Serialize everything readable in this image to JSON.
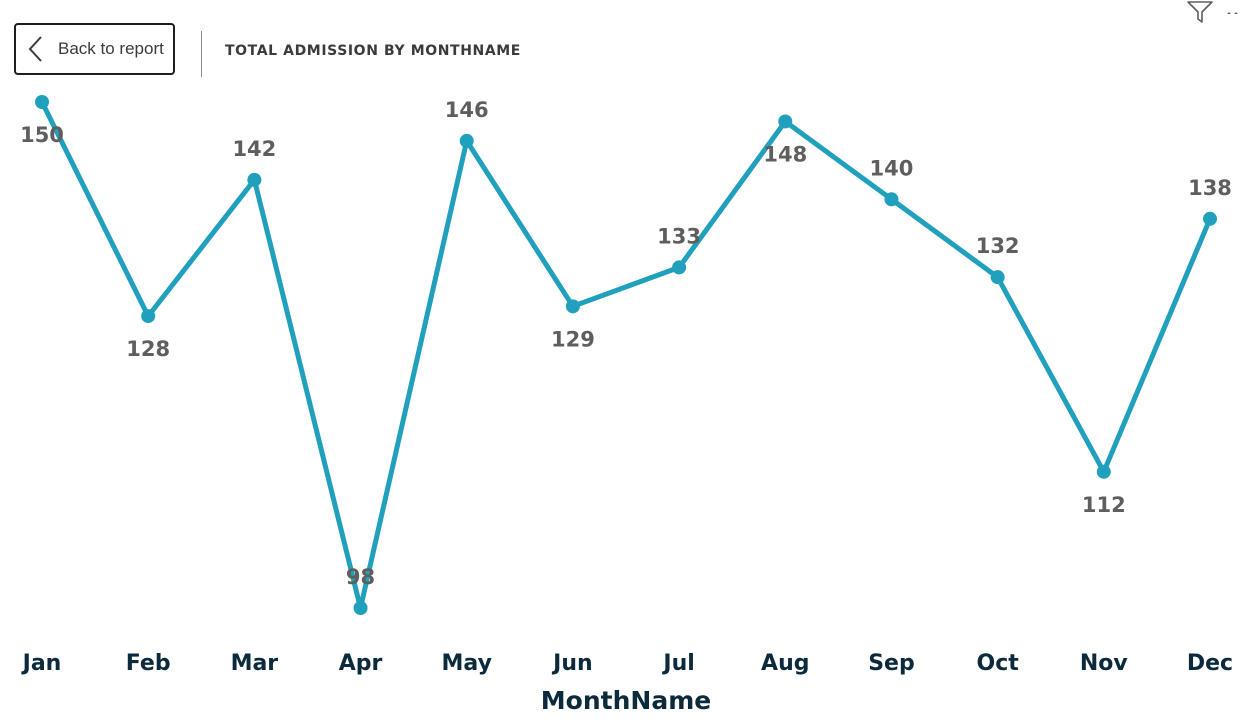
{
  "toolbar": {
    "back_label": "Back to report",
    "visual_title": "TOTAL ADMISSION BY MONTHNAME",
    "filter_icon": "filter-icon",
    "more_icon": "more-options-icon"
  },
  "colors": {
    "line": "#21a0bd",
    "data_label": "#605e5c",
    "axis_text": "#0b2a3c"
  },
  "chart_data": {
    "type": "line",
    "categories": [
      "Jan",
      "Feb",
      "Mar",
      "Apr",
      "May",
      "Jun",
      "Jul",
      "Aug",
      "Sep",
      "Oct",
      "Nov",
      "Dec"
    ],
    "series": [
      {
        "values": [
          150,
          128,
          142,
          98,
          146,
          129,
          133,
          148,
          140,
          132,
          112,
          138
        ]
      }
    ],
    "xlabel": "MonthName",
    "ylabel": "",
    "data_labels": true,
    "grid": false
  }
}
